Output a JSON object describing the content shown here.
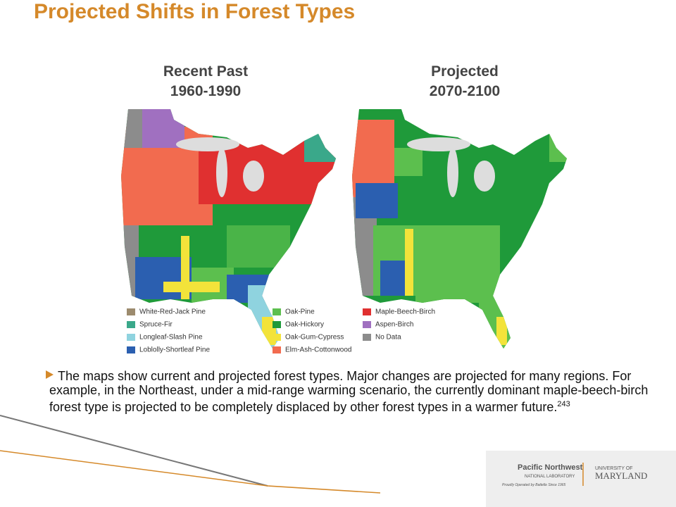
{
  "header": {
    "title": "Projected Shifts in Forest Types"
  },
  "maps": [
    {
      "title_line1": "Recent Past",
      "title_line2": "1960-1990"
    },
    {
      "title_line1": "Projected",
      "title_line2": "2070-2100"
    }
  ],
  "legend": [
    {
      "label": "White-Red-Jack Pine",
      "color": "#9c8b6e"
    },
    {
      "label": "Spruce-Fir",
      "color": "#3aa88a"
    },
    {
      "label": "Longleaf-Slash Pine",
      "color": "#8fd3df"
    },
    {
      "label": "Loblolly-Shortleaf Pine",
      "color": "#2b5fb0"
    },
    {
      "label": "Oak-Pine",
      "color": "#5cbf4e"
    },
    {
      "label": "Oak-Hickory",
      "color": "#1f9a3a"
    },
    {
      "label": "Oak-Gum-Cypress",
      "color": "#f3e33a"
    },
    {
      "label": "Elm-Ash-Cottonwood",
      "color": "#f26b4f"
    },
    {
      "label": "Maple-Beech-Birch",
      "color": "#e03030"
    },
    {
      "label": "Aspen-Birch",
      "color": "#a070c0"
    },
    {
      "label": "No Data",
      "color": "#8c8c8c"
    }
  ],
  "body": {
    "text": "The maps show current and projected forest types. Major changes are projected for many regions. For example, in the Northeast, under a mid-range warming scenario, the currently dominant maple-beech-birch forest type is projected to be completely displaced by other forest types in a warmer future.",
    "footnote": "243"
  },
  "logos": {
    "pnnl_line1": "Pacific Northwest",
    "pnnl_line2": "NATIONAL LABORATORY",
    "pnnl_line3": "Proudly Operated by Battelle Since 1965",
    "umd_line1": "UNIVERSITY OF",
    "umd_line2": "MARYLAND"
  }
}
